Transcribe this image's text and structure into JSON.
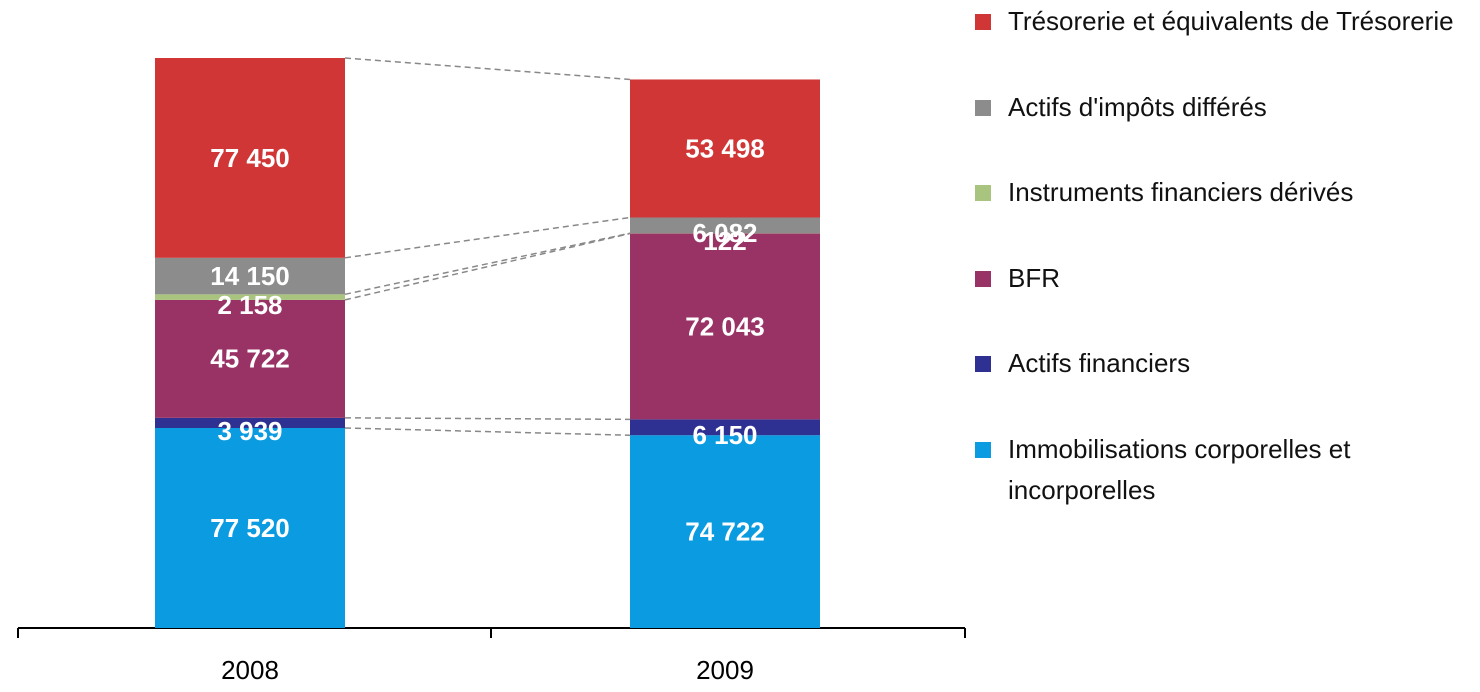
{
  "chart_data": {
    "type": "stacked_bar",
    "categories": [
      "2008",
      "2009"
    ],
    "series": [
      {
        "name": "Immobilisations corporelles et incorporelles",
        "color": "#0a9be0",
        "values": [
          77520,
          74722
        ],
        "value_labels": [
          "77 520",
          "74 722"
        ]
      },
      {
        "name": "Actifs financiers",
        "color": "#2e3192",
        "values": [
          3939,
          6150
        ],
        "value_labels": [
          "3 939",
          "6 150"
        ]
      },
      {
        "name": "BFR",
        "color": "#993366",
        "values": [
          45722,
          72043
        ],
        "value_labels": [
          "45 722",
          "72 043"
        ]
      },
      {
        "name": "Instruments financiers dérivés",
        "color": "#a9c47f",
        "values": [
          2158,
          122
        ],
        "value_labels": [
          "2 158",
          "122"
        ]
      },
      {
        "name": "Actifs d'impôts différés",
        "color": "#8c8c8c",
        "values": [
          14150,
          6082
        ],
        "value_labels": [
          "14 150",
          "6 082"
        ]
      },
      {
        "name": "Trésorerie et équivalents de Trésorerie",
        "color": "#d03636",
        "values": [
          77450,
          53498
        ],
        "value_labels": [
          "77 450",
          "53 498"
        ]
      }
    ]
  }
}
